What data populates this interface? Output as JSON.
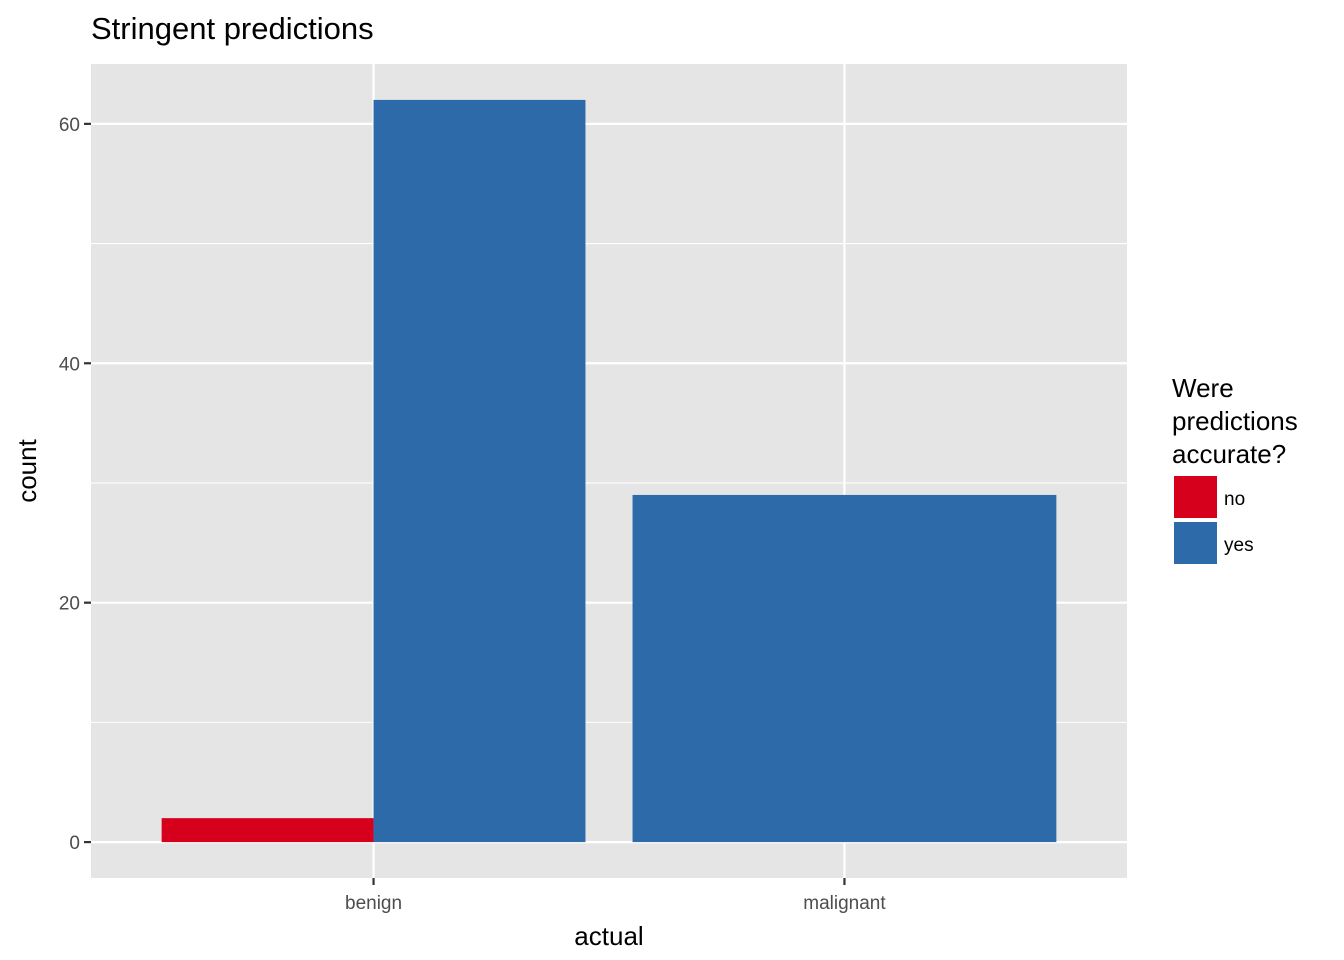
{
  "chart_data": {
    "type": "bar",
    "title": "Stringent predictions",
    "xlabel": "actual",
    "ylabel": "count",
    "categories": [
      "benign",
      "malignant"
    ],
    "series": [
      {
        "name": "no",
        "color": "#d7001c",
        "values": [
          2,
          0
        ]
      },
      {
        "name": "yes",
        "color": "#2d6aa9",
        "values": [
          62,
          29
        ]
      }
    ],
    "ylim": [
      -3,
      65
    ],
    "yticks": [
      0,
      20,
      40,
      60
    ],
    "yticks_minor": [
      10,
      30,
      50
    ],
    "grid": true,
    "legend": {
      "title_lines": [
        "Were",
        "predictions",
        "accurate?"
      ],
      "placement": "right"
    }
  },
  "colors": {
    "panel_background": "#e5e5e5",
    "grid": "#ffffff",
    "page_background": "#ffffff"
  }
}
